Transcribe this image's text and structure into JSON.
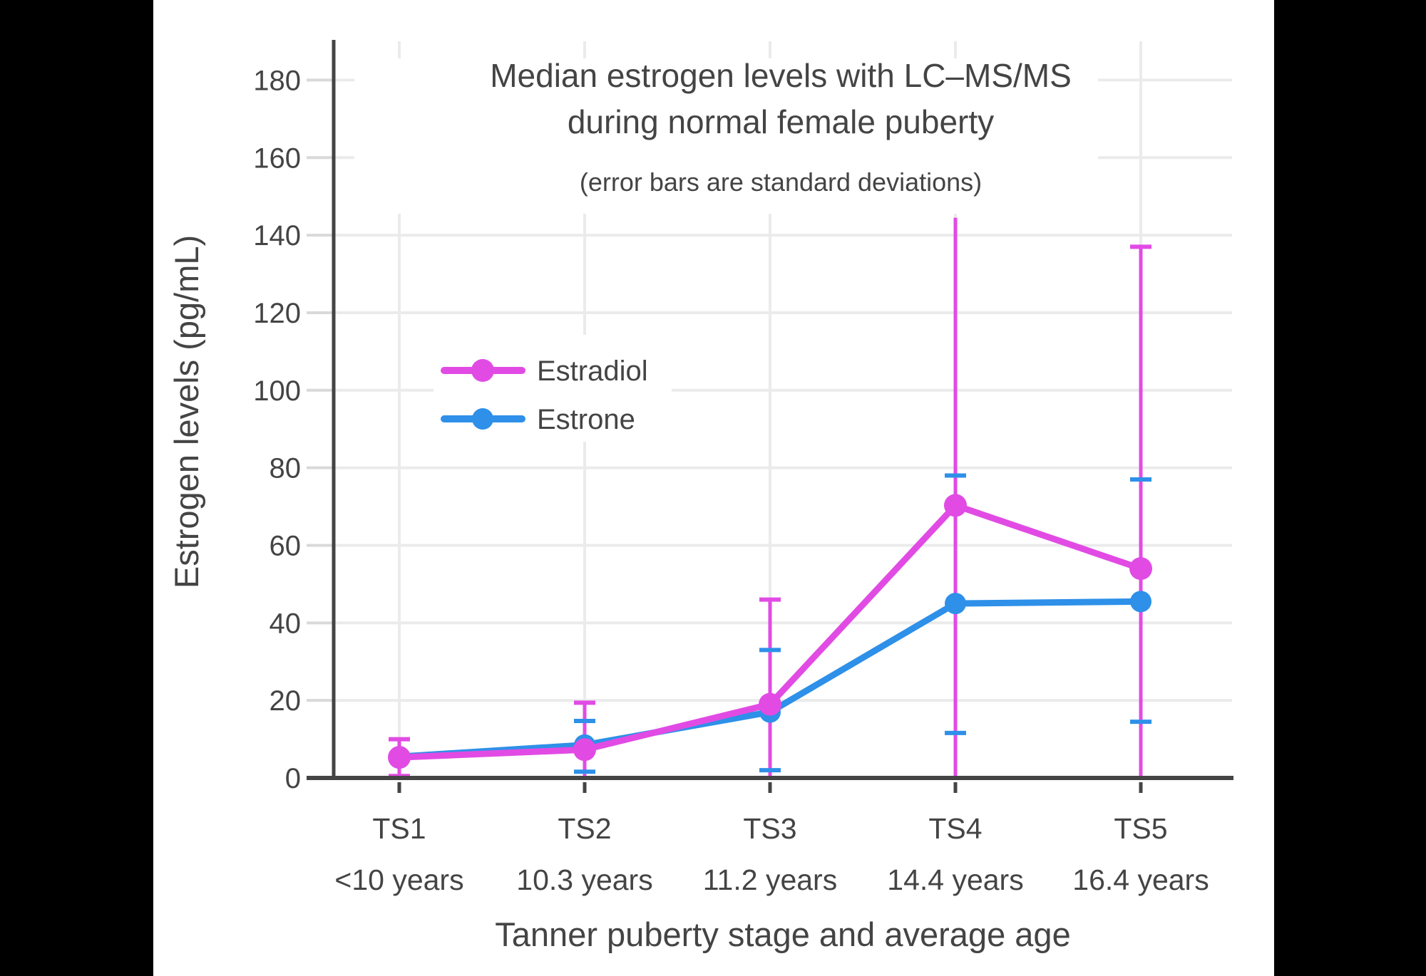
{
  "page": {
    "background_color": "#000000",
    "panel_color": "#ffffff",
    "text_color": "#444444",
    "grid_color": "#ebebeb",
    "axis_color": "#444444",
    "minor_tick_color": "#d9d9d9"
  },
  "chart_data": {
    "type": "line",
    "title_line1": "Median estrogen levels with LC–MS/MS",
    "title_line2": "during normal female puberty",
    "subtitle": "(error bars are standard deviations)",
    "xlabel": "Tanner puberty stage and average age",
    "ylabel": "Estrogen levels (pg/mL)",
    "categories": [
      "TS1",
      "TS2",
      "TS3",
      "TS4",
      "TS5"
    ],
    "category_sublabels": [
      "<10 years",
      "10.3 years",
      "11.2 years",
      "14.4 years",
      "16.4 years"
    ],
    "y_ticks": [
      0,
      20,
      40,
      60,
      80,
      100,
      120,
      140,
      160,
      180
    ],
    "ylim": [
      0,
      190
    ],
    "grid": true,
    "legend_position": "inside-upper-left",
    "error_bar_meaning": "standard deviations",
    "series": [
      {
        "name": "Estradiol",
        "color": "#E14BE4",
        "values": [
          5.3,
          7.3,
          19,
          70.3,
          54
        ],
        "error_low": [
          0.5,
          0,
          0,
          0,
          0
        ],
        "error_high": [
          10,
          19.4,
          46,
          144.5,
          137
        ],
        "caps_low": [
          true,
          false,
          false,
          false,
          false
        ],
        "caps_high": [
          true,
          true,
          true,
          false,
          true
        ]
      },
      {
        "name": "Estrone",
        "color": "#2E90E8",
        "values": [
          5.5,
          8.5,
          17,
          45,
          45.5
        ],
        "error_low": [
          null,
          1.6,
          2,
          11.6,
          14.5
        ],
        "error_high": [
          null,
          14.7,
          33,
          78,
          77
        ],
        "caps_low": [
          false,
          true,
          true,
          true,
          true
        ],
        "caps_high": [
          false,
          true,
          true,
          true,
          true
        ]
      }
    ]
  }
}
